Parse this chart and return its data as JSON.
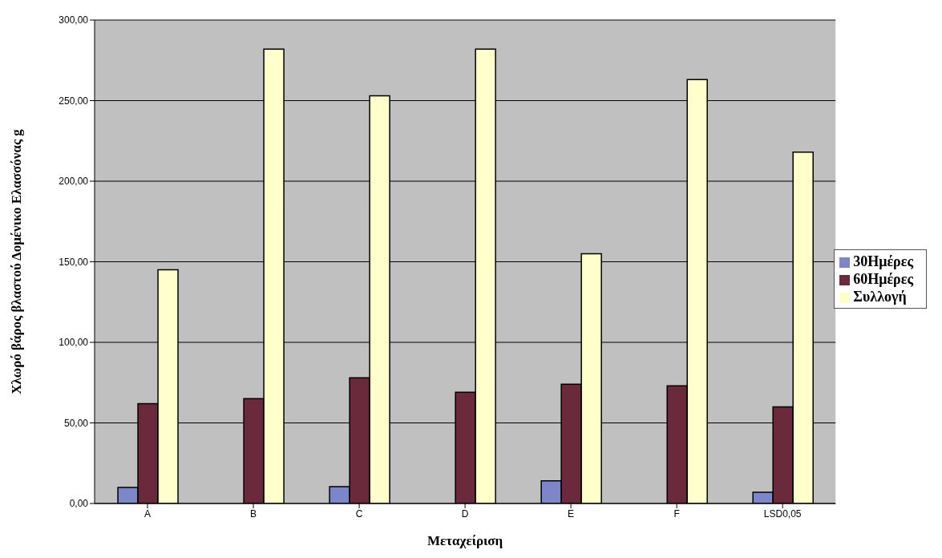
{
  "chart_data": {
    "type": "bar",
    "xlabel": "Μεταχείριση",
    "ylabel": "Χλωρό βάρος βλαστού Δομένικο Ελασσόνας g",
    "categories": [
      "A",
      "B",
      "C",
      "D",
      "E",
      "F",
      "LSD0,05"
    ],
    "series": [
      {
        "name": "30Ημέρες",
        "color": "#7c86c8",
        "values": [
          10,
          null,
          10.5,
          null,
          14,
          null,
          7
        ]
      },
      {
        "name": "60Ημέρες",
        "color": "#6b2a3c",
        "values": [
          62,
          65,
          78,
          69,
          74,
          73,
          60
        ]
      },
      {
        "name": "Συλλογή",
        "color": "#ffffcc",
        "values": [
          145,
          282,
          253,
          282,
          155,
          263,
          218
        ]
      }
    ],
    "ylim": [
      0,
      300
    ],
    "yticks": [
      {
        "value": 0,
        "label": "0,00"
      },
      {
        "value": 50,
        "label": "50,00"
      },
      {
        "value": 100,
        "label": "100,00"
      },
      {
        "value": 150,
        "label": "150,00"
      },
      {
        "value": 200,
        "label": "200,00"
      },
      {
        "value": 250,
        "label": "250,00"
      },
      {
        "value": 300,
        "label": "300,00"
      }
    ],
    "grid": "y",
    "legend": "right"
  }
}
